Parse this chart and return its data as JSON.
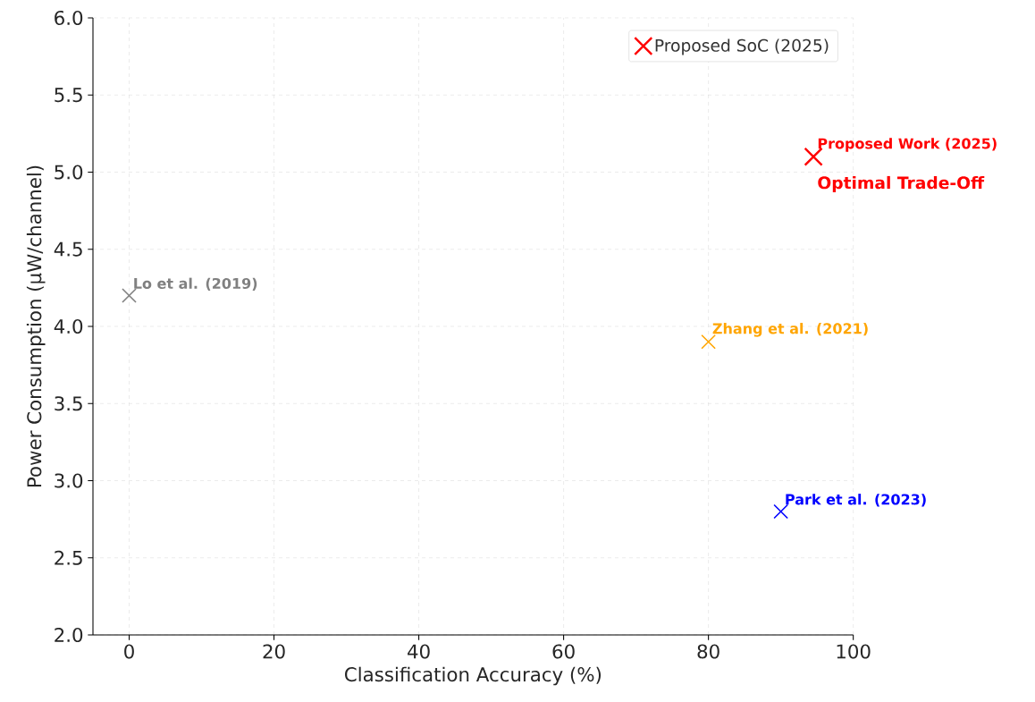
{
  "chart_data": {
    "type": "scatter",
    "xlabel": "Classification Accuracy (%)",
    "ylabel": "Power Consumption (µW/channel)",
    "xlim": [
      -5,
      100
    ],
    "xticks": [
      0,
      20,
      40,
      60,
      80,
      100
    ],
    "ylim": [
      2,
      6
    ],
    "yticks": [
      {
        "value": 2,
        "label": "2.0"
      },
      2.5,
      {
        "value": 3,
        "label": "3.0"
      },
      3.5,
      {
        "value": 4,
        "label": "4.0"
      },
      4.5,
      {
        "value": 5,
        "label": "5.0"
      },
      5.5,
      {
        "value": 6,
        "label": "6.0"
      }
    ],
    "grid": true,
    "legend": "top right",
    "marker": "cross",
    "series": [
      {
        "color": "#808080",
        "x": [
          0
        ],
        "values": [
          4.2
        ]
      },
      {
        "color": "#ffa500",
        "x": [
          80
        ],
        "values": [
          3.9
        ]
      },
      {
        "color": "#0000ff",
        "x": [
          90
        ],
        "values": [
          2.8
        ]
      },
      {
        "name": "Proposed SoC (2025)",
        "color": "#ff0000",
        "x": [
          94.5
        ],
        "values": [
          5.1
        ]
      }
    ],
    "annotations": [
      {
        "text": "Lo et al. (2019)",
        "x": 0,
        "y": 4.2
      },
      {
        "text": "Zhang et al. (2021)",
        "x": 80,
        "y": 3.9
      },
      {
        "text": "Park et al. (2023)",
        "x": 90,
        "y": 2.8
      },
      {
        "text": "Proposed Work (2025)",
        "x": 94.5,
        "y": 5.1
      },
      {
        "text": "Optimal Trade-Off",
        "x": 94.5,
        "y": 5.1
      }
    ]
  }
}
